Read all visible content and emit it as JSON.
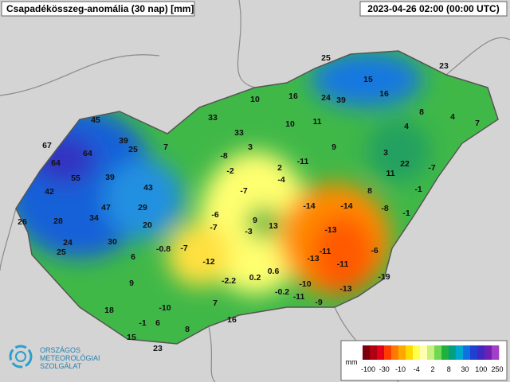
{
  "header": {
    "title": "Csapadékösszeg-anomália (30 nap) [mm]",
    "timestamp": "2023-04-26 02:00 (00:00 UTC)"
  },
  "stations": [
    "25",
    "23",
    "15",
    "16",
    "10",
    "16",
    "24",
    "39",
    "8",
    "4",
    "7",
    "45",
    "33",
    "10",
    "11",
    "4",
    "33",
    "67",
    "39",
    "25",
    "7",
    "3",
    "9",
    "64",
    "-8",
    "3",
    "64",
    "-11",
    "22",
    "-7",
    "2",
    "-2",
    "11",
    "55",
    "39",
    "-4",
    "42",
    "43",
    "-7",
    "8",
    "-1",
    "47",
    "29",
    "-14",
    "-14",
    "-8",
    "-1",
    "26",
    "28",
    "34",
    "-6",
    "9",
    "13",
    "20",
    "-7",
    "-3",
    "-13",
    "24",
    "30",
    "-0.8",
    "-7",
    "-11",
    "-6",
    "25",
    "6",
    "-12",
    "-13",
    "-11",
    "-19",
    "0.6",
    "9",
    "-2.2",
    "0.2",
    "-10",
    "-0.2",
    "-11",
    "-13",
    "7",
    "-10",
    "18",
    "-9",
    "6",
    "-1",
    "8",
    "16",
    "15",
    "23"
  ],
  "legend": {
    "unit": "mm",
    "labels": [
      "-100",
      "-30",
      "-10",
      "-4",
      "2",
      "8",
      "30",
      "100",
      "250"
    ],
    "colors": [
      "#7a0010",
      "#b00010",
      "#e0001a",
      "#ff3a00",
      "#ff7a00",
      "#ffa800",
      "#ffd800",
      "#ffff50",
      "#ffffb0",
      "#c8f080",
      "#70d850",
      "#20b040",
      "#00a080",
      "#00a8d0",
      "#1070e0",
      "#2040d0",
      "#4028c0",
      "#7020b0",
      "#a040c8"
    ]
  },
  "logo": {
    "line1": "ORSZÁGOS",
    "line2": "METEOROLÓGIAI",
    "line3": "SZOLGÁLAT"
  }
}
